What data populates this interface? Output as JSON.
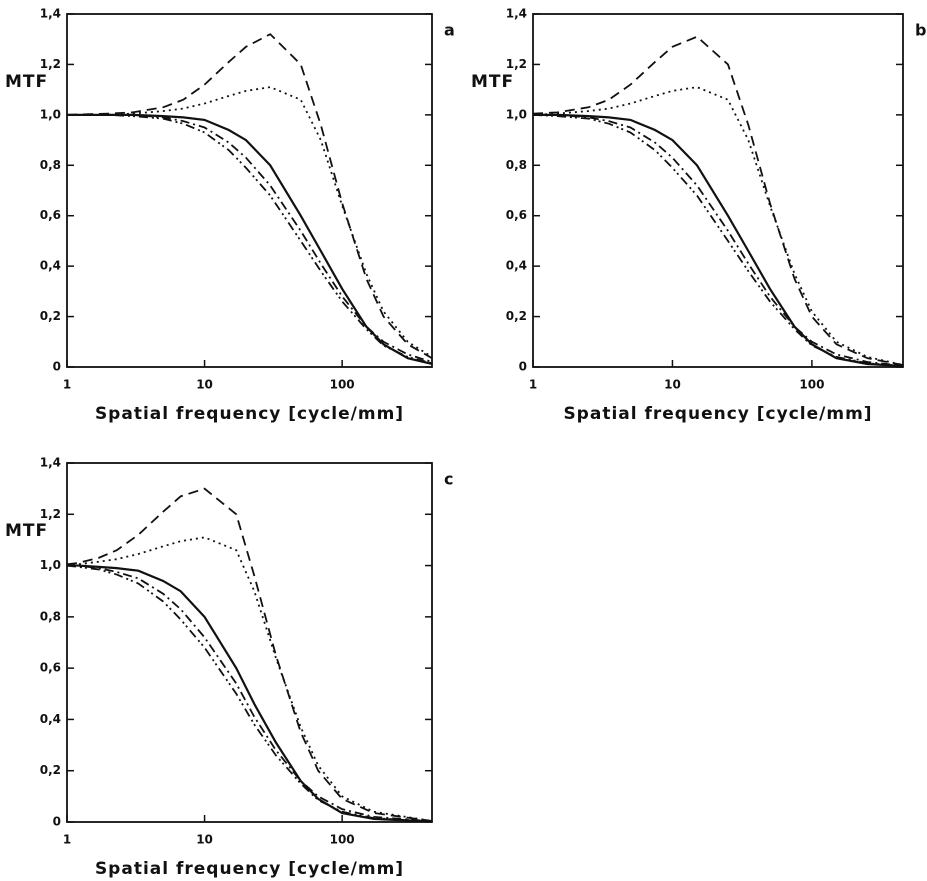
{
  "chart_data": [
    {
      "type": "line",
      "panel_label": "a",
      "ylabel": "MTF",
      "xlabel": "Spatial frequency [cycle/mm]",
      "xscale": "log",
      "xlim": [
        1,
        450
      ],
      "ylim": [
        0,
        1.4
      ],
      "xticks": [
        1,
        10,
        100
      ],
      "yticks": [
        0,
        {
          "value": 0.2,
          "label": "0,2"
        },
        {
          "value": 0.4,
          "label": "0,4"
        },
        {
          "value": 0.6,
          "label": "0,6"
        },
        {
          "value": 0.8,
          "label": "0,8"
        },
        {
          "value": 1.0,
          "label": "1,0"
        },
        {
          "value": 1.2,
          "label": "1,2"
        },
        {
          "value": 1.4,
          "label": "1,4"
        }
      ],
      "x": [
        1,
        2,
        3,
        5,
        7,
        10,
        15,
        20,
        30,
        50,
        70,
        100,
        150,
        200,
        300,
        450
      ],
      "series": [
        {
          "color": "#111111",
          "linestyle": "solid",
          "values": [
            1,
            1,
            1,
            0.995,
            0.99,
            0.98,
            0.94,
            0.9,
            0.8,
            0.6,
            0.46,
            0.31,
            0.16,
            0.09,
            0.035,
            0.012
          ]
        },
        {
          "color": "#111111",
          "linestyle": "dashed",
          "values": [
            1,
            1.005,
            1.01,
            1.03,
            1.06,
            1.12,
            1.21,
            1.27,
            1.32,
            1.2,
            0.96,
            0.65,
            0.35,
            0.2,
            0.09,
            0.035
          ]
        },
        {
          "color": "#111111",
          "linestyle": "dotted",
          "values": [
            1,
            1,
            1.005,
            1.015,
            1.025,
            1.045,
            1.075,
            1.095,
            1.11,
            1.06,
            0.9,
            0.64,
            0.37,
            0.22,
            0.1,
            0.04
          ]
        },
        {
          "color": "#111111",
          "linestyle": "dashdot",
          "values": [
            1,
            1,
            1,
            0.99,
            0.975,
            0.95,
            0.89,
            0.83,
            0.72,
            0.54,
            0.41,
            0.28,
            0.16,
            0.1,
            0.05,
            0.02
          ]
        },
        {
          "color": "#111111",
          "linestyle": "dashdotdot",
          "values": [
            1,
            1,
            0.995,
            0.985,
            0.965,
            0.93,
            0.86,
            0.79,
            0.68,
            0.5,
            0.38,
            0.26,
            0.15,
            0.085,
            0.04,
            0.015
          ]
        }
      ]
    },
    {
      "type": "line",
      "panel_label": "b",
      "ylabel": "MTF",
      "xlabel": "Spatial frequency [cycle/mm]",
      "xscale": "log",
      "xlim": [
        1,
        450
      ],
      "ylim": [
        0,
        1.4
      ],
      "xticks": [
        1,
        10,
        100
      ],
      "yticks": [
        0,
        {
          "value": 0.2,
          "label": "0,2"
        },
        {
          "value": 0.4,
          "label": "0,4"
        },
        {
          "value": 0.6,
          "label": "0,6"
        },
        {
          "value": 0.8,
          "label": "0,8"
        },
        {
          "value": 1.0,
          "label": "1,0"
        },
        {
          "value": 1.2,
          "label": "1,2"
        },
        {
          "value": 1.4,
          "label": "1,4"
        }
      ],
      "x": [
        1,
        1.5,
        2.5,
        3.5,
        5,
        7.5,
        10,
        15,
        25,
        35,
        50,
        75,
        100,
        150,
        250,
        450
      ],
      "series": [
        {
          "color": "#111111",
          "linestyle": "solid",
          "values": [
            1,
            1,
            0.995,
            0.99,
            0.98,
            0.94,
            0.9,
            0.8,
            0.6,
            0.46,
            0.31,
            0.16,
            0.09,
            0.035,
            0.012,
            0.004
          ]
        },
        {
          "color": "#111111",
          "linestyle": "dashed",
          "values": [
            1.005,
            1.01,
            1.03,
            1.06,
            1.12,
            1.21,
            1.27,
            1.31,
            1.2,
            0.96,
            0.65,
            0.35,
            0.2,
            0.09,
            0.035,
            0.008
          ]
        },
        {
          "color": "#111111",
          "linestyle": "dotted",
          "values": [
            1,
            1.005,
            1.015,
            1.025,
            1.045,
            1.075,
            1.095,
            1.11,
            1.06,
            0.9,
            0.64,
            0.37,
            0.22,
            0.1,
            0.04,
            0.008
          ]
        },
        {
          "color": "#111111",
          "linestyle": "dashdot",
          "values": [
            1,
            1,
            0.99,
            0.975,
            0.95,
            0.89,
            0.83,
            0.72,
            0.54,
            0.41,
            0.28,
            0.16,
            0.1,
            0.05,
            0.02,
            0.005
          ]
        },
        {
          "color": "#111111",
          "linestyle": "dashdotdot",
          "values": [
            1,
            0.995,
            0.985,
            0.965,
            0.93,
            0.86,
            0.79,
            0.68,
            0.5,
            0.38,
            0.26,
            0.15,
            0.085,
            0.04,
            0.015,
            0.004
          ]
        }
      ]
    },
    {
      "type": "line",
      "panel_label": "c",
      "ylabel": "MTF",
      "xlabel": "Spatial frequency [cycle/mm]",
      "xscale": "log",
      "xlim": [
        1,
        450
      ],
      "ylim": [
        0,
        1.4
      ],
      "xticks": [
        1,
        10,
        100
      ],
      "yticks": [
        0,
        {
          "value": 0.2,
          "label": "0,2"
        },
        {
          "value": 0.4,
          "label": "0,4"
        },
        {
          "value": 0.6,
          "label": "0,6"
        },
        {
          "value": 0.8,
          "label": "0,8"
        },
        {
          "value": 1.0,
          "label": "1,0"
        },
        {
          "value": 1.2,
          "label": "1,2"
        },
        {
          "value": 1.4,
          "label": "1,4"
        }
      ],
      "x": [
        1,
        1.2,
        1.7,
        2.3,
        3.3,
        5,
        6.7,
        10,
        17,
        23,
        33,
        50,
        67,
        100,
        170,
        450
      ],
      "series": [
        {
          "color": "#111111",
          "linestyle": "solid",
          "values": [
            1,
            1,
            0.995,
            0.99,
            0.98,
            0.94,
            0.9,
            0.8,
            0.6,
            0.46,
            0.31,
            0.16,
            0.09,
            0.035,
            0.012,
            0.002
          ]
        },
        {
          "color": "#111111",
          "linestyle": "dashed",
          "values": [
            1.005,
            1.01,
            1.03,
            1.06,
            1.12,
            1.21,
            1.27,
            1.3,
            1.2,
            0.96,
            0.65,
            0.35,
            0.2,
            0.09,
            0.035,
            0.004
          ]
        },
        {
          "color": "#111111",
          "linestyle": "dotted",
          "values": [
            1,
            1.005,
            1.015,
            1.025,
            1.045,
            1.075,
            1.095,
            1.11,
            1.06,
            0.9,
            0.64,
            0.37,
            0.22,
            0.1,
            0.04,
            0.004
          ]
        },
        {
          "color": "#111111",
          "linestyle": "dashdot",
          "values": [
            1,
            1,
            0.99,
            0.975,
            0.95,
            0.89,
            0.83,
            0.72,
            0.54,
            0.41,
            0.28,
            0.16,
            0.1,
            0.05,
            0.02,
            0.003
          ]
        },
        {
          "color": "#111111",
          "linestyle": "dashdotdot",
          "values": [
            1,
            0.995,
            0.985,
            0.965,
            0.93,
            0.86,
            0.79,
            0.68,
            0.5,
            0.38,
            0.26,
            0.15,
            0.085,
            0.04,
            0.015,
            0.002
          ]
        }
      ]
    }
  ]
}
